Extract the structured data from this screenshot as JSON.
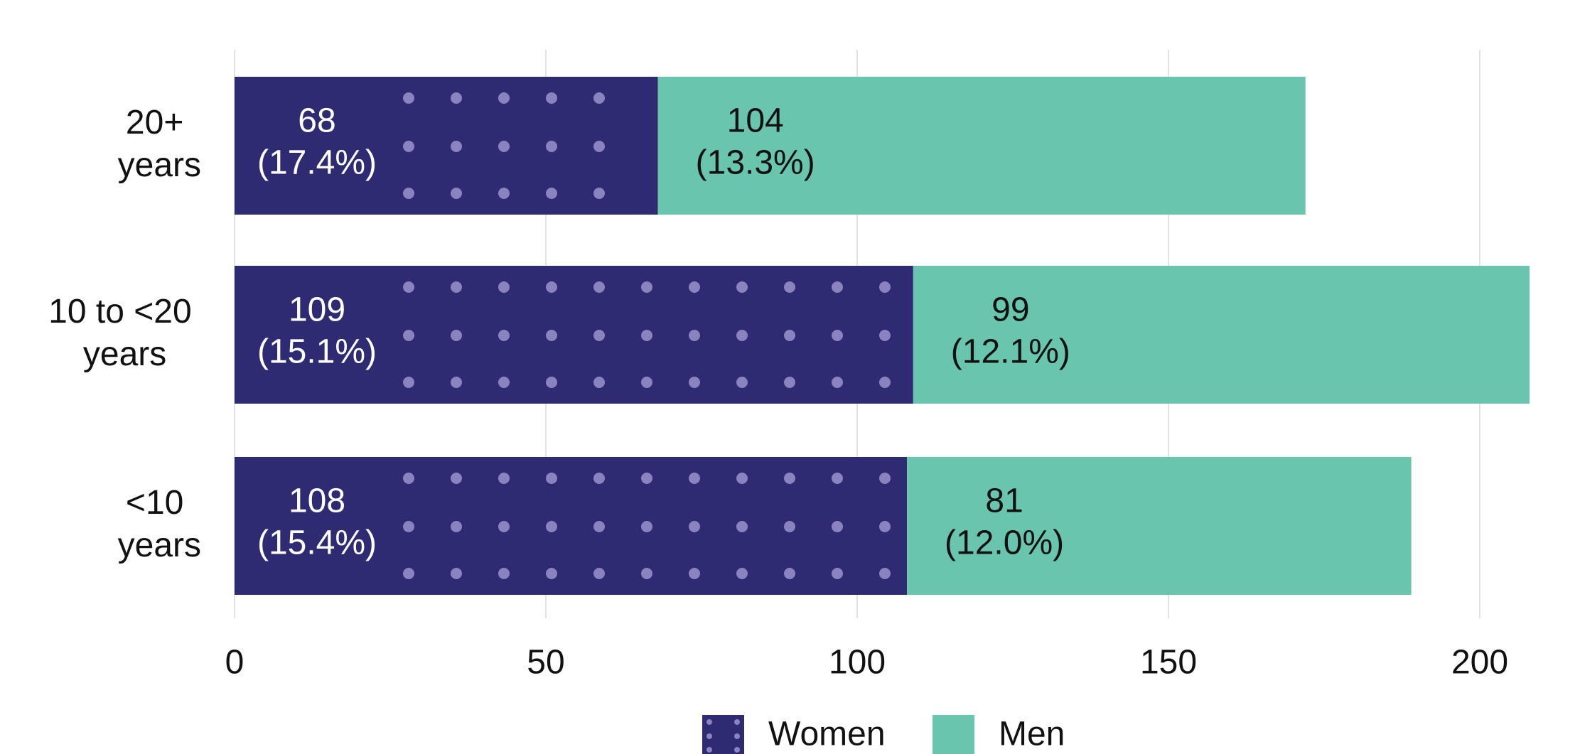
{
  "chart_data": {
    "type": "bar",
    "stacked": true,
    "orientation": "horizontal",
    "categories": [
      "20+ years",
      "10 to <20 years",
      "<10 years"
    ],
    "series": [
      {
        "name": "Women",
        "color": "#2e2b73",
        "pattern": "dots",
        "values": [
          68,
          109,
          108
        ],
        "share_labels": [
          "(17.4%)",
          "(15.1%)",
          "(15.4%)"
        ]
      },
      {
        "name": "Men",
        "color": "#69c5ae",
        "values": [
          104,
          99,
          81
        ],
        "share_labels": [
          "(13.3%)",
          "(12.1%)",
          "(12.0%)"
        ]
      }
    ],
    "xlim": [
      0,
      210
    ],
    "xticks": [
      0,
      50,
      100,
      150,
      200
    ],
    "grid": true,
    "legend": "bottom"
  }
}
